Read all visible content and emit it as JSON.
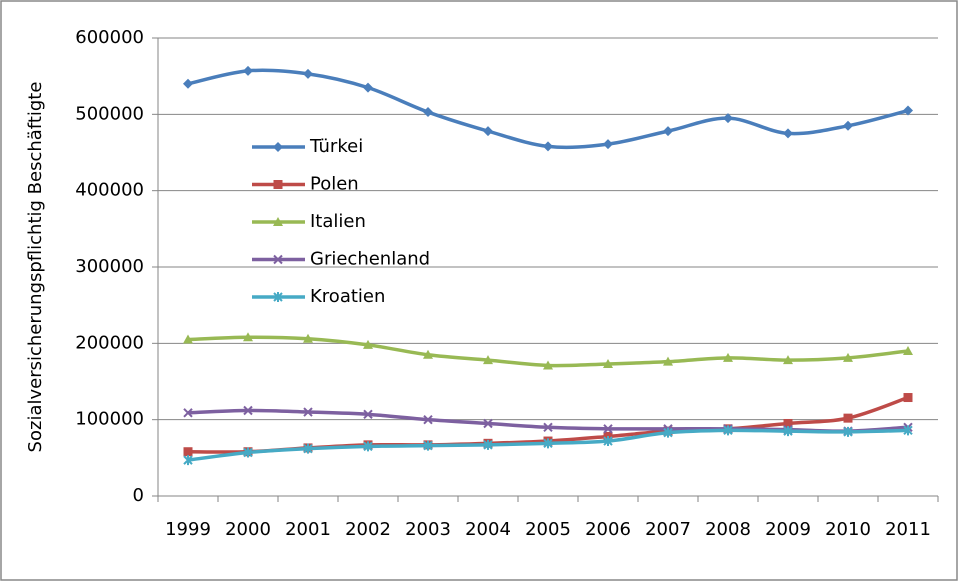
{
  "chart_data": {
    "type": "line",
    "y_label": "Sozialversicherungspflichtig Beschäftigte",
    "categories": [
      "1999",
      "2000",
      "2001",
      "2002",
      "2003",
      "2004",
      "2005",
      "2006",
      "2007",
      "2008",
      "2009",
      "2010",
      "2011"
    ],
    "series": [
      {
        "name": "Türkei",
        "color": "#4a7ebb",
        "marker": "diamond",
        "values": [
          540000,
          557000,
          553000,
          535000,
          503000,
          478000,
          458000,
          461000,
          478000,
          495000,
          475000,
          485000,
          505000
        ]
      },
      {
        "name": "Polen",
        "color": "#be4b48",
        "marker": "square",
        "values": [
          58000,
          58000,
          63000,
          67000,
          67000,
          69000,
          72000,
          78000,
          85000,
          88000,
          95000,
          102000,
          129000
        ]
      },
      {
        "name": "Italien",
        "color": "#98b954",
        "marker": "triangle",
        "values": [
          205000,
          208000,
          206000,
          198000,
          185000,
          178000,
          171000,
          173000,
          176000,
          181000,
          178000,
          181000,
          190000
        ]
      },
      {
        "name": "Griechenland",
        "color": "#7d60a0",
        "marker": "x",
        "values": [
          109000,
          112000,
          110000,
          107000,
          100000,
          95000,
          90000,
          88000,
          88000,
          88000,
          87000,
          85000,
          90000
        ]
      },
      {
        "name": "Kroatien",
        "color": "#46aac5",
        "marker": "star",
        "values": [
          47000,
          57000,
          62000,
          65000,
          66000,
          67000,
          69000,
          72000,
          83000,
          86000,
          85000,
          84000,
          86000
        ]
      }
    ],
    "ylim": [
      0,
      600000
    ],
    "yticks": [
      0,
      100000,
      200000,
      300000,
      400000,
      500000,
      600000
    ],
    "grid": true,
    "smooth": true
  }
}
